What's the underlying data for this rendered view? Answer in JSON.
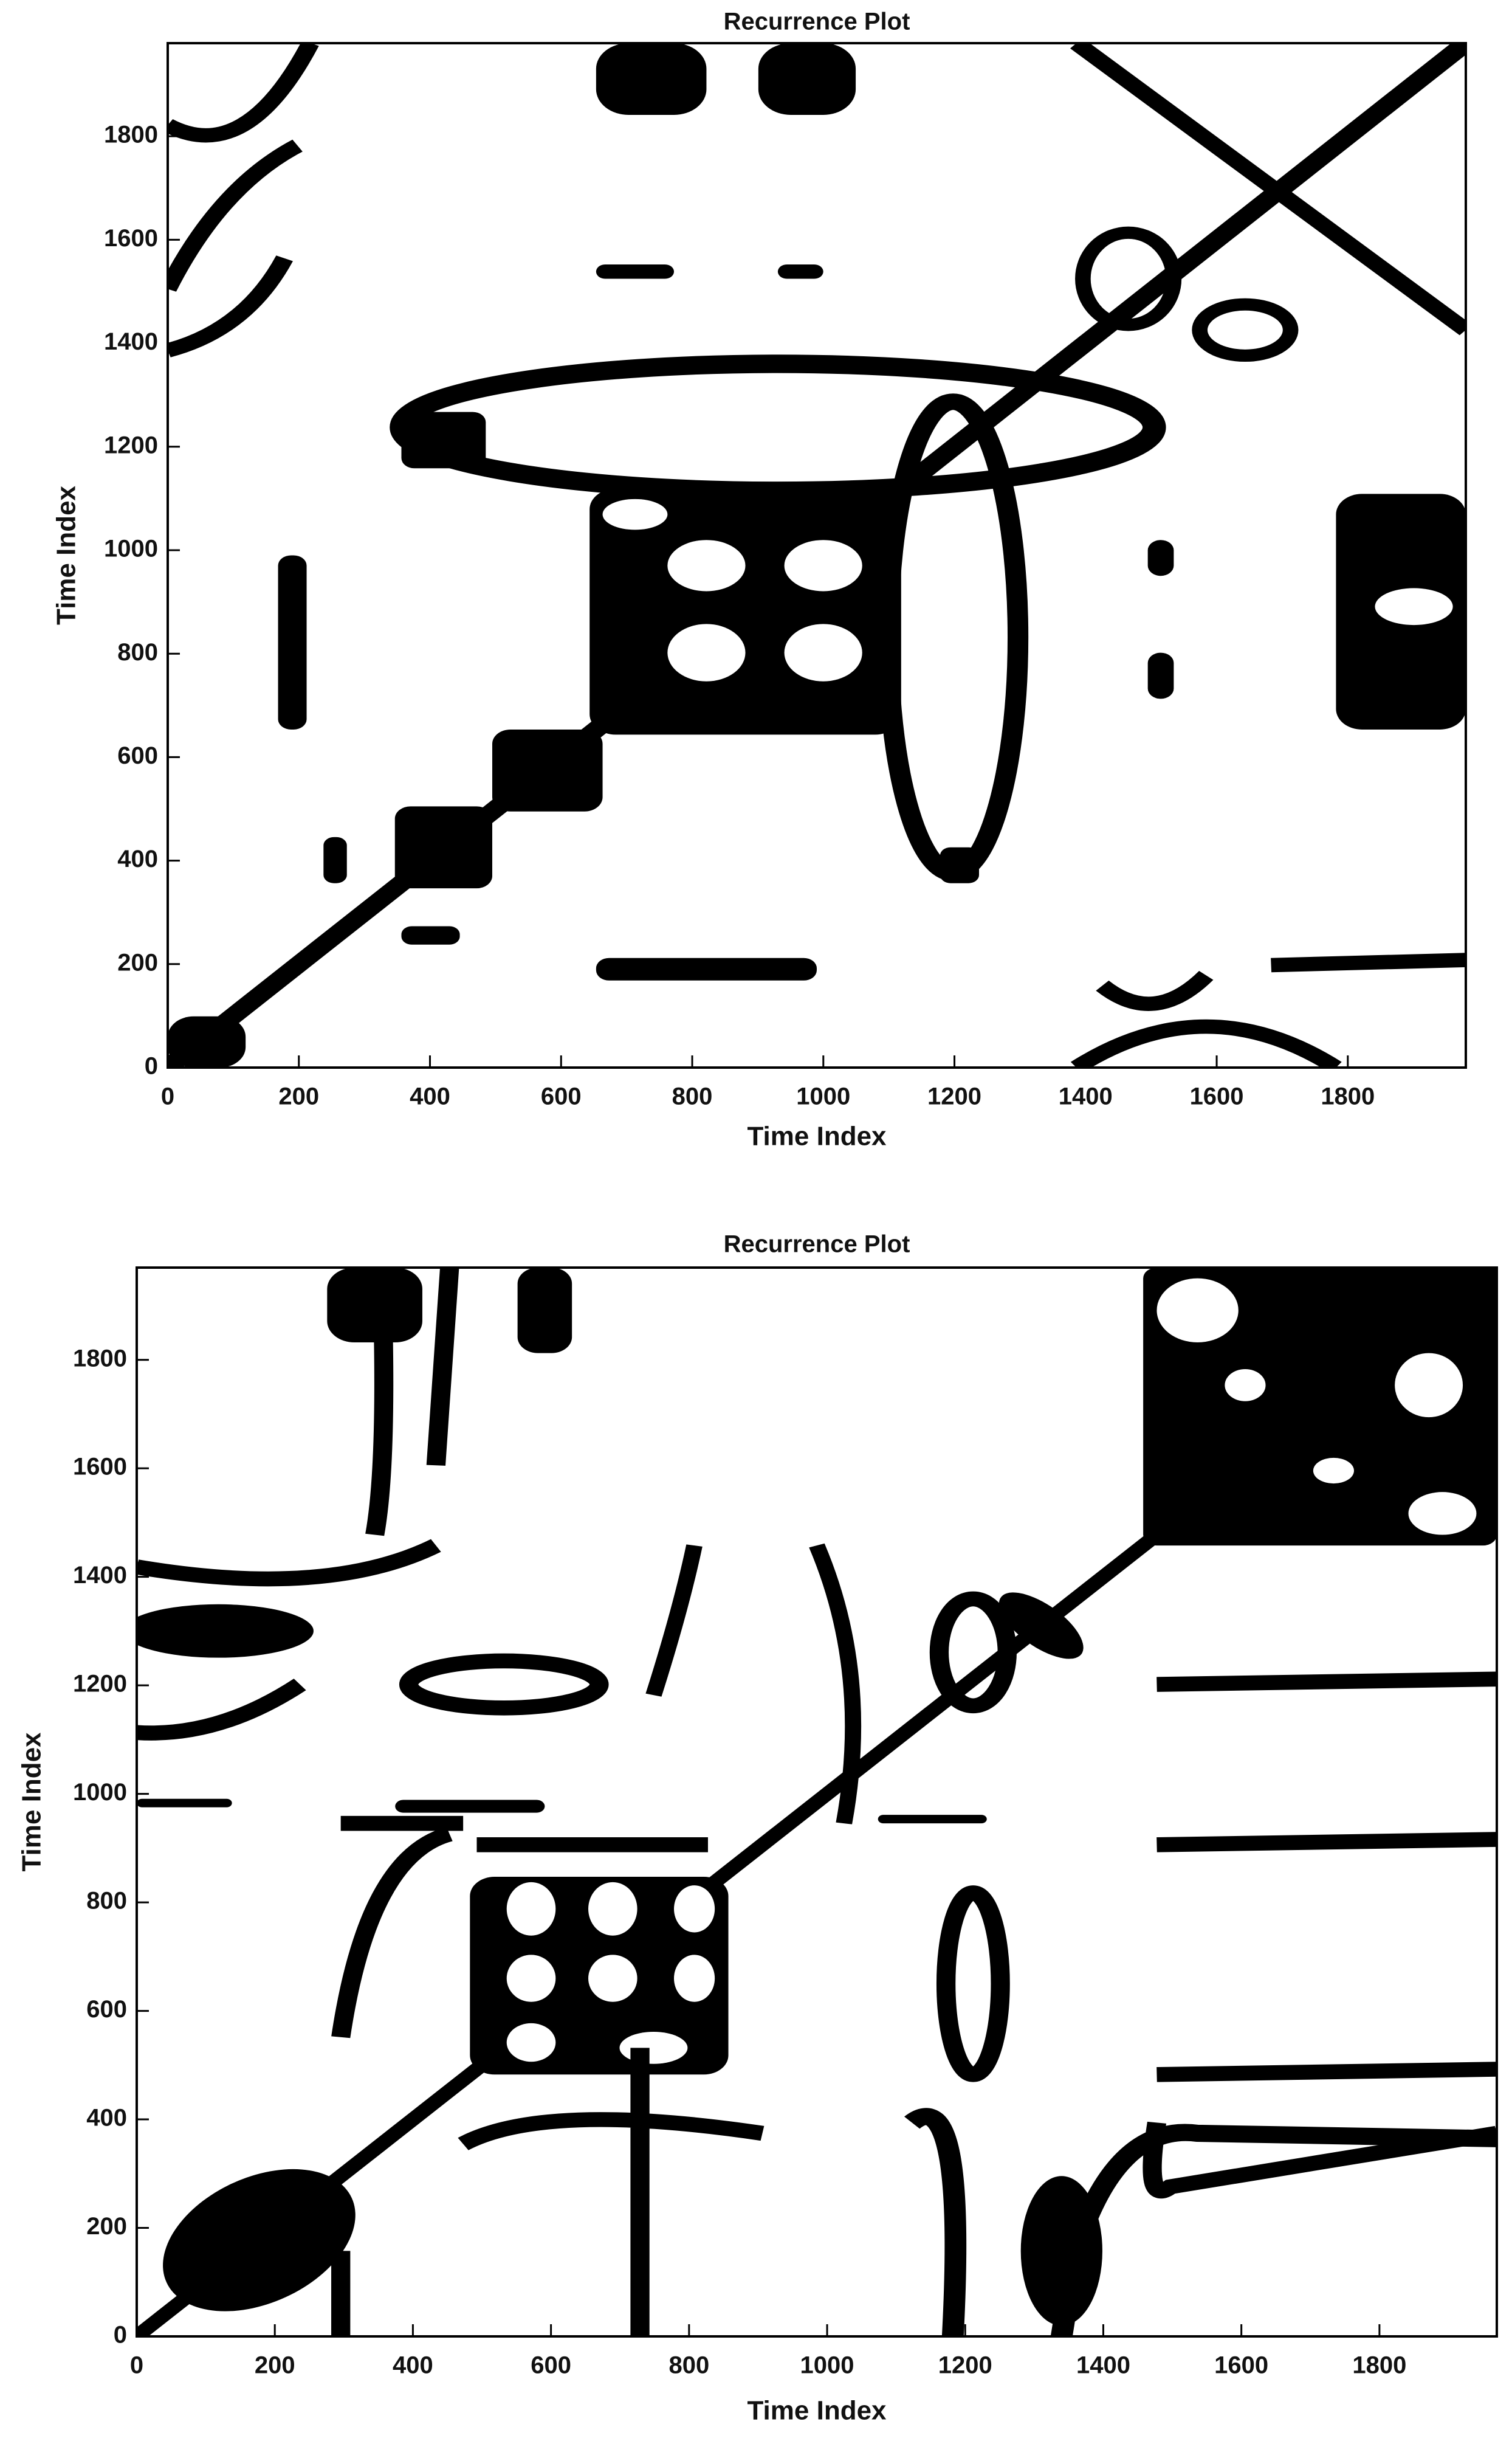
{
  "chart_data": [
    {
      "type": "recurrence",
      "title": "Recurrence Plot",
      "xlabel": "Time Index",
      "ylabel": "Time Index",
      "xlim": [
        0,
        1980
      ],
      "ylim": [
        0,
        1980
      ],
      "xticks": [
        0,
        200,
        400,
        600,
        800,
        1000,
        1200,
        1400,
        1600,
        1800
      ],
      "yticks": [
        0,
        200,
        400,
        600,
        800,
        1000,
        1200,
        1400,
        1600,
        1800
      ]
    },
    {
      "type": "recurrence",
      "title": "Recurrence Plot",
      "xlabel": "Time Index",
      "ylabel": "Time Index",
      "xlim": [
        0,
        1970
      ],
      "ylim": [
        0,
        1970
      ],
      "xticks": [
        0,
        200,
        400,
        600,
        800,
        1000,
        1200,
        1400,
        1600,
        1800
      ],
      "yticks": [
        0,
        200,
        400,
        600,
        800,
        1000,
        1200,
        1400,
        1600,
        1800
      ]
    }
  ]
}
